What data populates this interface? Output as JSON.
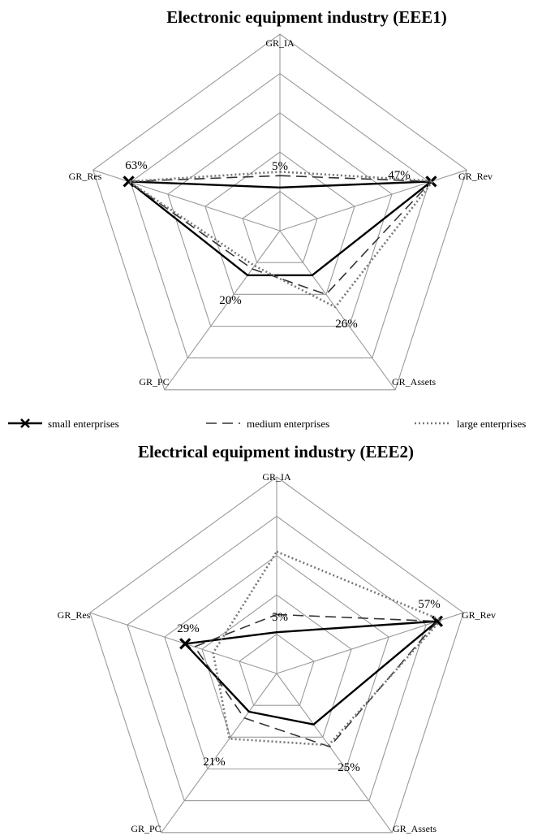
{
  "legend": [
    {
      "name": "small enterprises",
      "style": "solid-x"
    },
    {
      "name": "medium enterprises",
      "style": "dashed"
    },
    {
      "name": "large enterprises",
      "style": "dotted"
    }
  ],
  "colors": {
    "grid": "#9a9a9a",
    "small": "#000000",
    "medium": "#333333",
    "large": "#777777"
  },
  "chart_data": [
    {
      "type": "radar",
      "title": "Electronic equipment industry (EEE1)",
      "axes": [
        "GR_IA",
        "GR_Rev",
        "GR_Assets",
        "GR_PC",
        "GR_Res"
      ],
      "rings": 5,
      "series": [
        {
          "name": "small enterprises",
          "values": [
            0.22,
            0.81,
            0.28,
            0.28,
            0.81
          ]
        },
        {
          "name": "medium enterprises",
          "values": [
            0.28,
            0.81,
            0.4,
            0.24,
            0.81
          ]
        },
        {
          "name": "large enterprises",
          "values": [
            0.3,
            0.82,
            0.48,
            0.22,
            0.81
          ]
        }
      ],
      "annotations": [
        "63%",
        "47%",
        "5%",
        "20%",
        "26%"
      ]
    },
    {
      "type": "radar",
      "title": "Electrical equipment industry (EEE2)",
      "axes": [
        "GR_IA",
        "GR_Rev",
        "GR_Assets",
        "GR_PC",
        "GR_Res"
      ],
      "rings": 5,
      "series": [
        {
          "name": "small enterprises",
          "values": [
            0.21,
            0.86,
            0.32,
            0.24,
            0.49
          ]
        },
        {
          "name": "medium enterprises",
          "values": [
            0.3,
            0.86,
            0.46,
            0.28,
            0.44
          ]
        },
        {
          "name": "large enterprises",
          "values": [
            0.62,
            0.88,
            0.45,
            0.41,
            0.34
          ]
        }
      ],
      "annotations": [
        "29%",
        "57%",
        "5%",
        "21%",
        "25%"
      ]
    }
  ]
}
